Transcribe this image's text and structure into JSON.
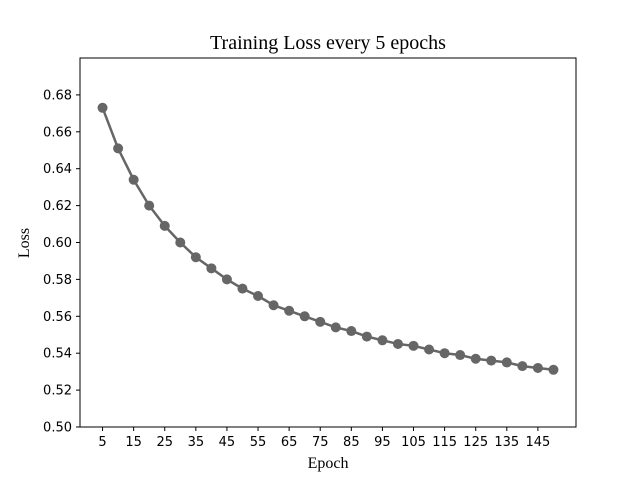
{
  "chart_data": {
    "type": "line",
    "title": "Training Loss every 5 epochs",
    "xlabel": "Epoch",
    "ylabel": "Loss",
    "x": [
      5,
      10,
      15,
      20,
      25,
      30,
      35,
      40,
      45,
      50,
      55,
      60,
      65,
      70,
      75,
      80,
      85,
      90,
      95,
      100,
      105,
      110,
      115,
      120,
      125,
      130,
      135,
      140,
      145,
      150
    ],
    "series": [
      {
        "values": [
          0.673,
          0.651,
          0.634,
          0.62,
          0.609,
          0.6,
          0.592,
          0.586,
          0.58,
          0.575,
          0.571,
          0.566,
          0.563,
          0.56,
          0.557,
          0.554,
          0.552,
          0.549,
          0.547,
          0.545,
          0.544,
          0.542,
          0.54,
          0.539,
          0.537,
          0.536,
          0.535,
          0.533,
          0.532,
          0.531
        ],
        "color": "#666666",
        "marker": "circle"
      }
    ],
    "xticks": [
      5,
      15,
      25,
      35,
      45,
      55,
      65,
      75,
      85,
      95,
      105,
      115,
      125,
      135,
      145
    ],
    "yticks": [
      0.5,
      0.52,
      0.54,
      0.56,
      0.58,
      0.6,
      0.62,
      0.64,
      0.66,
      0.68
    ],
    "xlim": [
      -2.25,
      157.25
    ],
    "ylim": [
      0.5,
      0.7
    ],
    "grid": false,
    "legend": "none"
  }
}
